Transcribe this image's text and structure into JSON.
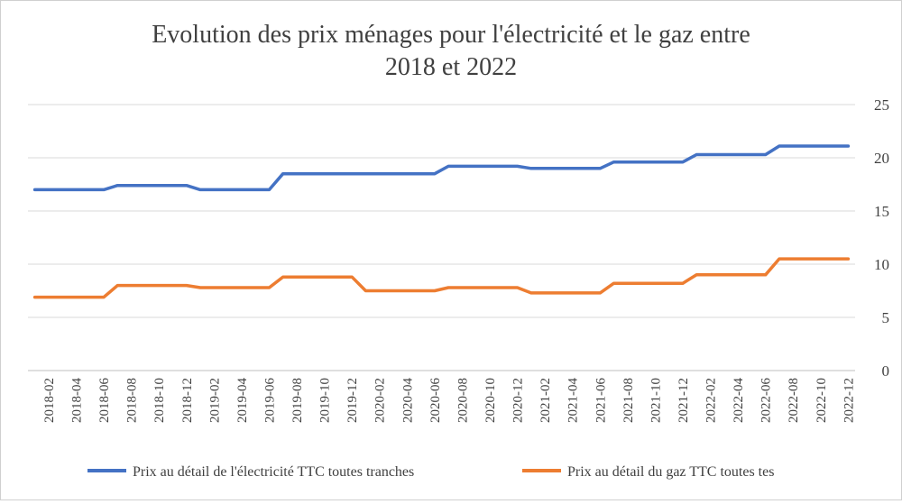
{
  "chart_data": {
    "type": "line",
    "title_lines": [
      "Evolution des prix ménages pour l'électricité et le gaz entre",
      "2018 et 2022"
    ],
    "xlabel": "",
    "ylabel": "",
    "ylim": [
      0,
      25
    ],
    "yticks": [
      0,
      5,
      10,
      15,
      20,
      25
    ],
    "y_axis_position": "right",
    "grid": "horizontal",
    "legend_position": "bottom",
    "x": [
      "2018-01",
      "2018-02",
      "2018-03",
      "2018-04",
      "2018-05",
      "2018-06",
      "2018-07",
      "2018-08",
      "2018-09",
      "2018-10",
      "2018-11",
      "2018-12",
      "2019-01",
      "2019-02",
      "2019-03",
      "2019-04",
      "2019-05",
      "2019-06",
      "2019-07",
      "2019-08",
      "2019-09",
      "2019-10",
      "2019-11",
      "2019-12",
      "2020-01",
      "2020-02",
      "2020-03",
      "2020-04",
      "2020-05",
      "2020-06",
      "2020-07",
      "2020-08",
      "2020-09",
      "2020-10",
      "2020-11",
      "2020-12",
      "2021-01",
      "2021-02",
      "2021-03",
      "2021-04",
      "2021-05",
      "2021-06",
      "2021-07",
      "2021-08",
      "2021-09",
      "2021-10",
      "2021-11",
      "2021-12",
      "2022-01",
      "2022-02",
      "2022-03",
      "2022-04",
      "2022-05",
      "2022-06",
      "2022-07",
      "2022-08",
      "2022-09",
      "2022-10",
      "2022-11",
      "2022-12"
    ],
    "x_tick_labels": [
      "2018-02",
      "2018-04",
      "2018-06",
      "2018-08",
      "2018-10",
      "2018-12",
      "2019-02",
      "2019-04",
      "2019-06",
      "2019-08",
      "2019-10",
      "2019-12",
      "2020-02",
      "2020-04",
      "2020-06",
      "2020-08",
      "2020-10",
      "2020-12",
      "2021-02",
      "2021-04",
      "2021-06",
      "2021-08",
      "2021-10",
      "2021-12",
      "2022-02",
      "2022-04",
      "2022-06",
      "2022-08",
      "2022-10",
      "2022-12"
    ],
    "series": [
      {
        "name": "Prix au détail de l'électricité TTC toutes tranches",
        "color": "#4472C4",
        "values": [
          17.0,
          17.0,
          17.0,
          17.0,
          17.0,
          17.0,
          17.4,
          17.4,
          17.4,
          17.4,
          17.4,
          17.4,
          17.0,
          17.0,
          17.0,
          17.0,
          17.0,
          17.0,
          18.5,
          18.5,
          18.5,
          18.5,
          18.5,
          18.5,
          18.5,
          18.5,
          18.5,
          18.5,
          18.5,
          18.5,
          19.2,
          19.2,
          19.2,
          19.2,
          19.2,
          19.2,
          19.0,
          19.0,
          19.0,
          19.0,
          19.0,
          19.0,
          19.6,
          19.6,
          19.6,
          19.6,
          19.6,
          19.6,
          20.3,
          20.3,
          20.3,
          20.3,
          20.3,
          20.3,
          21.1,
          21.1,
          21.1,
          21.1,
          21.1,
          21.1
        ]
      },
      {
        "name": "Prix au détail du gaz TTC toutes tes",
        "color": "#ED7D31",
        "values": [
          6.9,
          6.9,
          6.9,
          6.9,
          6.9,
          6.9,
          8.0,
          8.0,
          8.0,
          8.0,
          8.0,
          8.0,
          7.8,
          7.8,
          7.8,
          7.8,
          7.8,
          7.8,
          8.8,
          8.8,
          8.8,
          8.8,
          8.8,
          8.8,
          7.5,
          7.5,
          7.5,
          7.5,
          7.5,
          7.5,
          7.8,
          7.8,
          7.8,
          7.8,
          7.8,
          7.8,
          7.3,
          7.3,
          7.3,
          7.3,
          7.3,
          7.3,
          8.2,
          8.2,
          8.2,
          8.2,
          8.2,
          8.2,
          9.0,
          9.0,
          9.0,
          9.0,
          9.0,
          9.0,
          10.5,
          10.5,
          10.5,
          10.5,
          10.5,
          10.5
        ]
      }
    ]
  }
}
